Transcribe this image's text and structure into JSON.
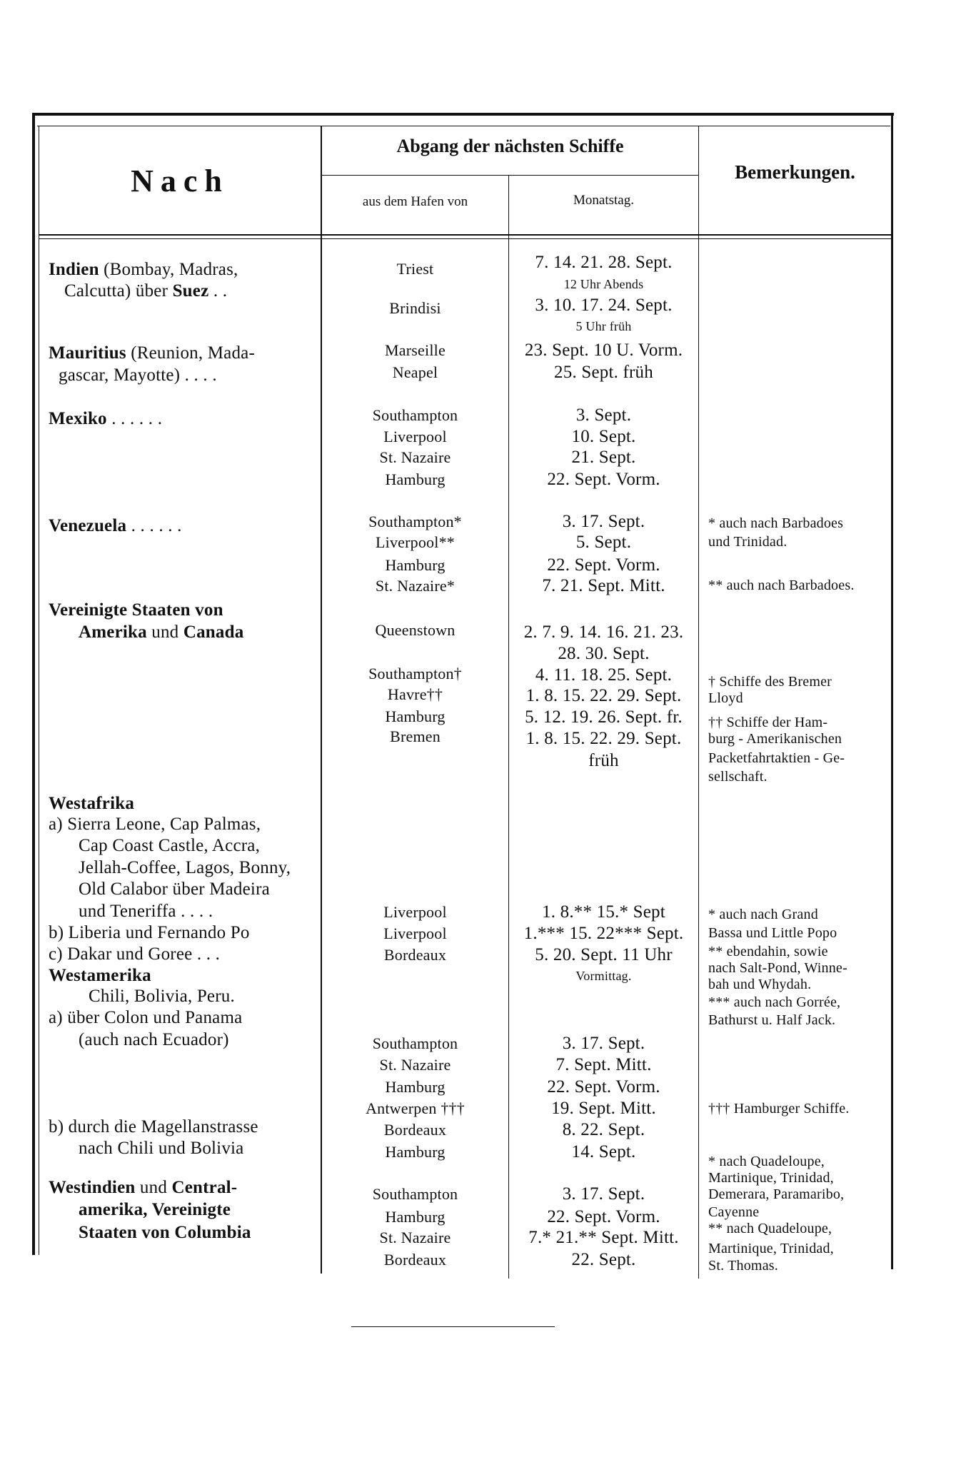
{
  "header": {
    "destination": "Nach",
    "departure": "Abgang der nächsten Schiffe",
    "port": "aus dem Hafen von",
    "date": "Monatstag.",
    "remarks": "Bemerkungen."
  },
  "rows": [
    {
      "destination": [
        {
          "b": "Indien",
          "t": " (Bombay, Madras,"
        },
        {
          "t": "Calcutta) über ",
          "b2": "Suez",
          "t2": " . ."
        }
      ],
      "ports": [
        "Triest",
        "Brindisi"
      ],
      "dates": [
        "7. 14. 21. 28. Sept.",
        "12 Uhr Abends",
        "3. 10. 17. 24. Sept.",
        "5 Uhr früh"
      ],
      "remarks": []
    },
    {
      "destination": [
        {
          "b": "Mauritius",
          "t": " (Reunion, Mada-"
        },
        {
          "t": "gascar, Mayotte) . . . ."
        }
      ],
      "ports": [
        "Marseille",
        "Neapel"
      ],
      "dates": [
        "23. Sept. 10 U. Vorm.",
        "25. Sept. früh"
      ],
      "remarks": []
    },
    {
      "destination": [
        {
          "b": "Mexiko",
          "t": "      . . . . . ."
        }
      ],
      "ports": [
        "Southampton",
        "Liverpool",
        "St. Nazaire",
        "Hamburg"
      ],
      "dates": [
        "3. Sept.",
        "10. Sept.",
        "21. Sept.",
        "22. Sept. Vorm."
      ],
      "remarks": []
    },
    {
      "destination": [
        {
          "b": "Venezuela",
          "t": " . . . . . ."
        }
      ],
      "ports": [
        "Southampton*",
        "Liverpool**",
        "Hamburg",
        "St. Nazaire*"
      ],
      "dates": [
        "3. 17. Sept.",
        "5. Sept.",
        "22. Sept. Vorm.",
        "7. 21. Sept. Mitt."
      ],
      "remarks": [
        "* auch nach Barbadoes",
        "und Trinidad.",
        "** auch nach Barbadoes."
      ]
    },
    {
      "destination": [
        {
          "b": "Vereinigte Staaten von"
        },
        {
          "b": "Amerika",
          "t": " und ",
          "b2": "Canada"
        }
      ],
      "ports": [
        "Queenstown",
        "Southampton†",
        "Havre††",
        "Hamburg",
        "Bremen"
      ],
      "dates": [
        "2. 7. 9. 14. 16. 21. 23.",
        "28. 30. Sept.",
        "4. 11. 18. 25. Sept.",
        "1. 8. 15. 22. 29. Sept.",
        "5. 12. 19. 26. Sept. fr.",
        "1. 8. 15. 22. 29. Sept.",
        "früh"
      ],
      "remarks": [
        "† Schiffe des Bremer",
        "Lloyd",
        "†† Schiffe der Ham-",
        "burg - Amerikanischen",
        "Packetfahrtaktien - Ge-",
        "sellschaft."
      ]
    },
    {
      "destination": [
        {
          "b": "Westafrika"
        },
        {
          "t": "a) Sierra Leone, Cap Palmas,"
        },
        {
          "t": "Cap Coast Castle, Accra,"
        },
        {
          "t": "Jellah-Coffee, Lagos, Bonny,"
        },
        {
          "t": "Old Calabor über Madeira"
        },
        {
          "t": "und Teneriffa . . . ."
        },
        {
          "t": "b) Liberia und Fernando Po"
        },
        {
          "t": "c) Dakar und Goree . . ."
        }
      ],
      "ports": [
        "Liverpool",
        "Liverpool",
        "Bordeaux"
      ],
      "dates": [
        "1. 8.** 15.* Sept",
        "1.*** 15. 22*** Sept.",
        "5. 20. Sept. 11 Uhr",
        "Vormittag."
      ],
      "remarks": [
        "* auch nach Grand",
        "Bassa und Little Popo",
        "** ebendahin, sowie",
        "nach Salt-Pond, Winne-",
        "bah und Whydah.",
        "*** auch nach Gorrée,",
        "Bathurst u. Half Jack."
      ]
    },
    {
      "destination": [
        {
          "b": "Westamerika"
        },
        {
          "t": "Chili, Bolivia, Peru."
        },
        {
          "t": "a) über Colon und Panama"
        },
        {
          "t": "(auch nach Ecuador)"
        },
        {
          "t": "b) durch die Magellanstrasse"
        },
        {
          "t": "nach Chili und Bolivia"
        }
      ],
      "ports": [
        "Southampton",
        "St. Nazaire",
        "Hamburg",
        "Antwerpen †††",
        "Bordeaux",
        "Hamburg"
      ],
      "dates": [
        "3. 17. Sept.",
        "7. Sept. Mitt.",
        "22. Sept. Vorm.",
        "19. Sept. Mitt.",
        "8. 22. Sept.",
        "14. Sept."
      ],
      "remarks": [
        "††† Hamburger Schiffe."
      ]
    },
    {
      "destination": [
        {
          "b": "Westindien",
          "t": " und ",
          "b2": "Central-"
        },
        {
          "b": "amerika,  Vereinigte"
        },
        {
          "b": "Staaten von Columbia"
        }
      ],
      "ports": [
        "Southampton",
        "Hamburg",
        "St. Nazaire",
        "Bordeaux"
      ],
      "dates": [
        "3. 17. Sept.",
        "22. Sept. Vorm.",
        "7.* 21.** Sept. Mitt.",
        "22. Sept."
      ],
      "remarks": [
        "* nach Quadeloupe,",
        "Martinique, Trinidad,",
        "Demerara, Paramaribo,",
        "Cayenne",
        "** nach Quadeloupe,",
        "Martinique, Trinidad,",
        "St. Thomas."
      ]
    }
  ]
}
